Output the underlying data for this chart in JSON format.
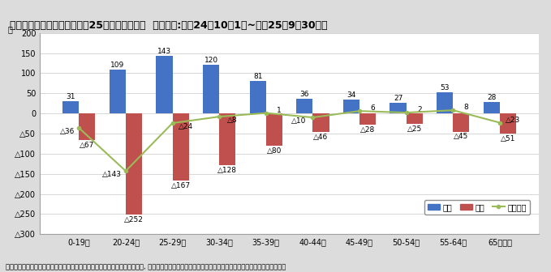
{
  "categories": [
    "0-19歳",
    "20-24歳",
    "25-29歳",
    "30-34歳",
    "35-39歳",
    "40-44歳",
    "45-49歳",
    "50-54歳",
    "55-64歳",
    "65歳以上"
  ],
  "transfer_in": [
    31,
    109,
    143,
    120,
    81,
    36,
    34,
    27,
    53,
    28
  ],
  "transfer_out_raw": [
    -67,
    -252,
    -167,
    -128,
    -80,
    -46,
    -28,
    -25,
    -45,
    -51
  ],
  "social_change": [
    -36,
    -143,
    -24,
    -8,
    1,
    -10,
    6,
    2,
    8,
    -23
  ],
  "bar_in_color": "#4472C4",
  "bar_out_color": "#C0504D",
  "line_color": "#9BBB59",
  "background_color": "#DCDCDC",
  "plot_bg_color": "#FFFFFF",
  "title_main": "年代別原因者社会動態（平成25年人口移動調査",
  "title_sub": "調査年月:平成24年10月1日~平成25年9月30日）",
  "ylabel": "人",
  "ylim_min": -300,
  "ylim_max": 200,
  "yticks": [
    200,
    150,
    100,
    50,
    0,
    -50,
    -100,
    -150,
    -200,
    -250,
    -300
  ],
  "ytick_labels": [
    "200",
    "150",
    "100",
    "50",
    "0",
    "△50",
    "△100",
    "△150",
    "△200",
    "△250",
    "△300"
  ],
  "legend_labels": [
    "転入",
    "転出",
    "社会増減"
  ],
  "footnote": "注）転入には、県外から転入した者で市が職権により「記載」した人の数が, 転出には、県外へ転出した者で住民票から「削除」した人の数は含まない。",
  "grid_color": "#C8C8C8",
  "title_fontsize": 9,
  "subtitle_fontsize": 6.5,
  "axis_fontsize": 7,
  "annotation_fontsize": 6.5,
  "footnote_fontsize": 6
}
